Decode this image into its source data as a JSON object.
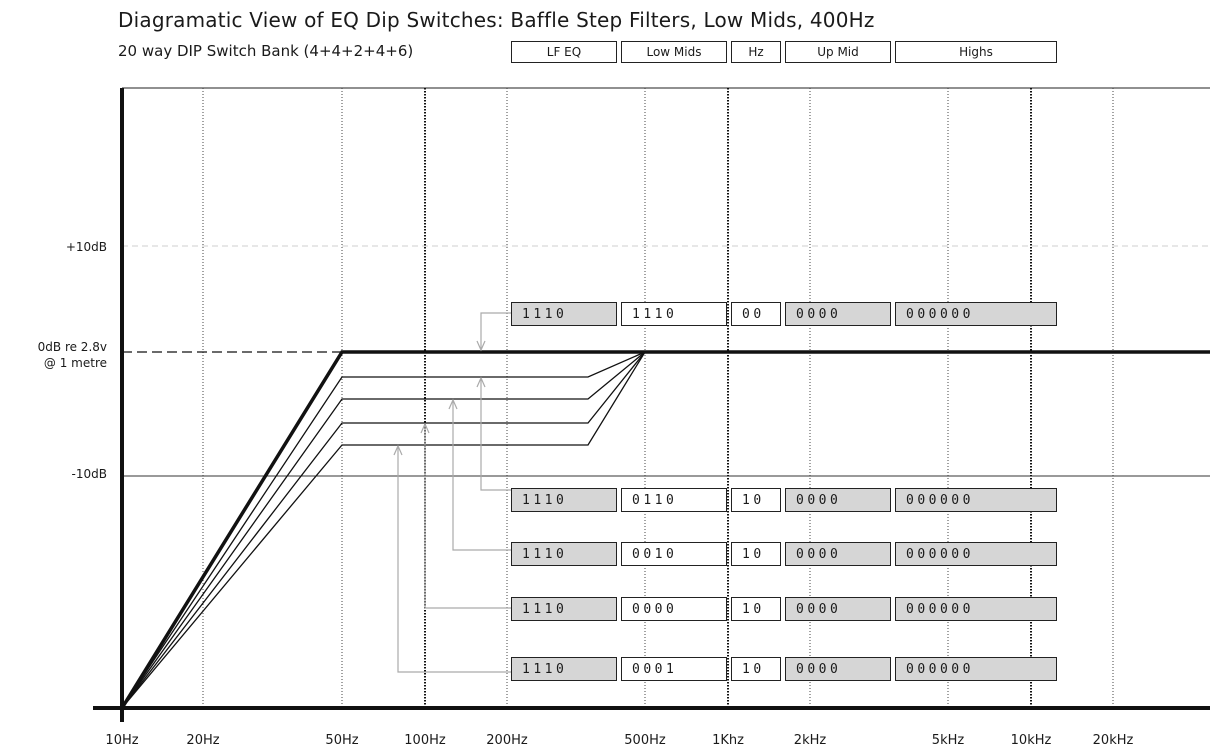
{
  "title": "Diagramatic View of EQ Dip Switches: Baffle Step Filters, Low Mids, 400Hz",
  "subtitle": "20 way DIP Switch Bank (4+4+2+4+6)",
  "headers": [
    "LF EQ",
    "Low Mids",
    "Hz",
    "Up Mid",
    "Highs"
  ],
  "y_labels": {
    "plus10": "+10dB",
    "zero_line1": "0dB re 2.8v",
    "zero_line2": "@ 1 metre",
    "minus10": "-10dB"
  },
  "x_labels": [
    "10Hz",
    "20Hz",
    "50Hz",
    "100Hz",
    "200Hz",
    "500Hz",
    "1Khz",
    "2kHz",
    "5kHz",
    "10kHz",
    "20kHz"
  ],
  "switch_rows": [
    {
      "lf_eq": "1110",
      "low_mids": "1110",
      "hz": "00",
      "up_mid": "0000",
      "highs": "000000"
    },
    {
      "lf_eq": "1110",
      "low_mids": "0110",
      "hz": "10",
      "up_mid": "0000",
      "highs": "000000"
    },
    {
      "lf_eq": "1110",
      "low_mids": "0010",
      "hz": "10",
      "up_mid": "0000",
      "highs": "000000"
    },
    {
      "lf_eq": "1110",
      "low_mids": "0000",
      "hz": "10",
      "up_mid": "0000",
      "highs": "000000"
    },
    {
      "lf_eq": "1110",
      "low_mids": "0001",
      "hz": "10",
      "up_mid": "0000",
      "highs": "000000"
    }
  ],
  "colors": {
    "switch_on_fill": "#d6d6d6",
    "line": "#111111",
    "arrow": "#aaaaaa"
  }
}
